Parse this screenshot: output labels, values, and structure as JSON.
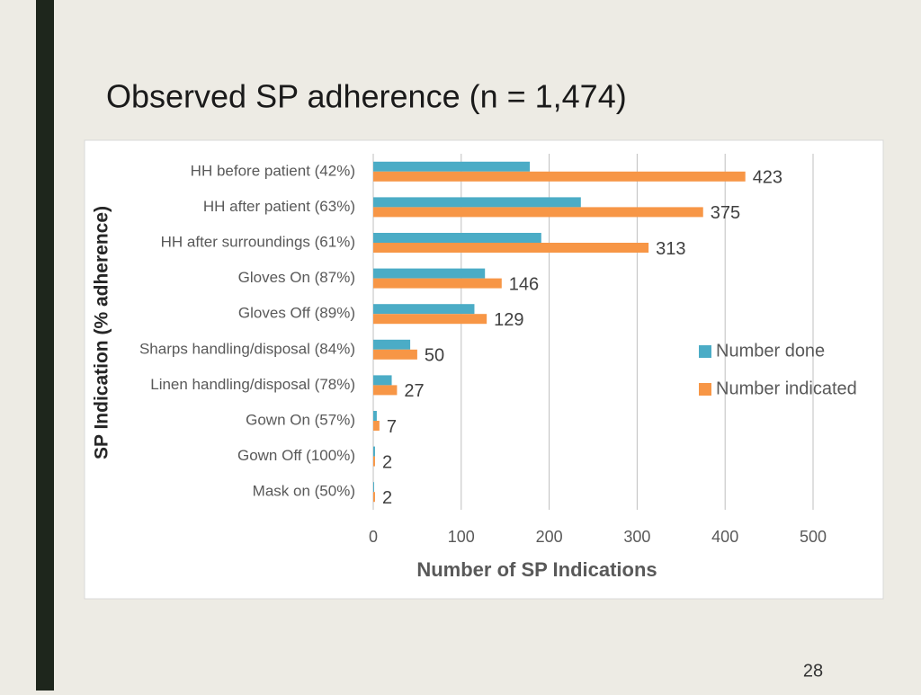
{
  "slide": {
    "title": "Observed SP adherence (n = 1,474)",
    "page_number": 28
  },
  "chart_data": {
    "type": "hbar",
    "x_label": "Number of SP Indications",
    "y_label": "SP Indication (% adherence)",
    "categories": [
      "HH before patient (42%)",
      "HH after patient (63%)",
      "HH after surroundings (61%)",
      "Gloves On (87%)",
      "Gloves Off (89%)",
      "Sharps handling/disposal (84%)",
      "Linen handling/disposal (78%)",
      "Gown On (57%)",
      "Gown Off (100%)",
      "Mask on (50%)"
    ],
    "series": [
      {
        "name": "Number done",
        "color": "#4bacc6",
        "values": [
          178,
          236,
          191,
          127,
          115,
          42,
          21,
          4,
          2,
          1
        ]
      },
      {
        "name": "Number indicated",
        "color": "#f79646",
        "values": [
          423,
          375,
          313,
          146,
          129,
          50,
          27,
          7,
          2,
          2
        ],
        "data_labels": true
      }
    ],
    "xlim": [
      0,
      500
    ],
    "xticks": [
      0,
      100,
      200,
      300,
      400,
      500
    ],
    "grid": true,
    "legend": "right"
  }
}
